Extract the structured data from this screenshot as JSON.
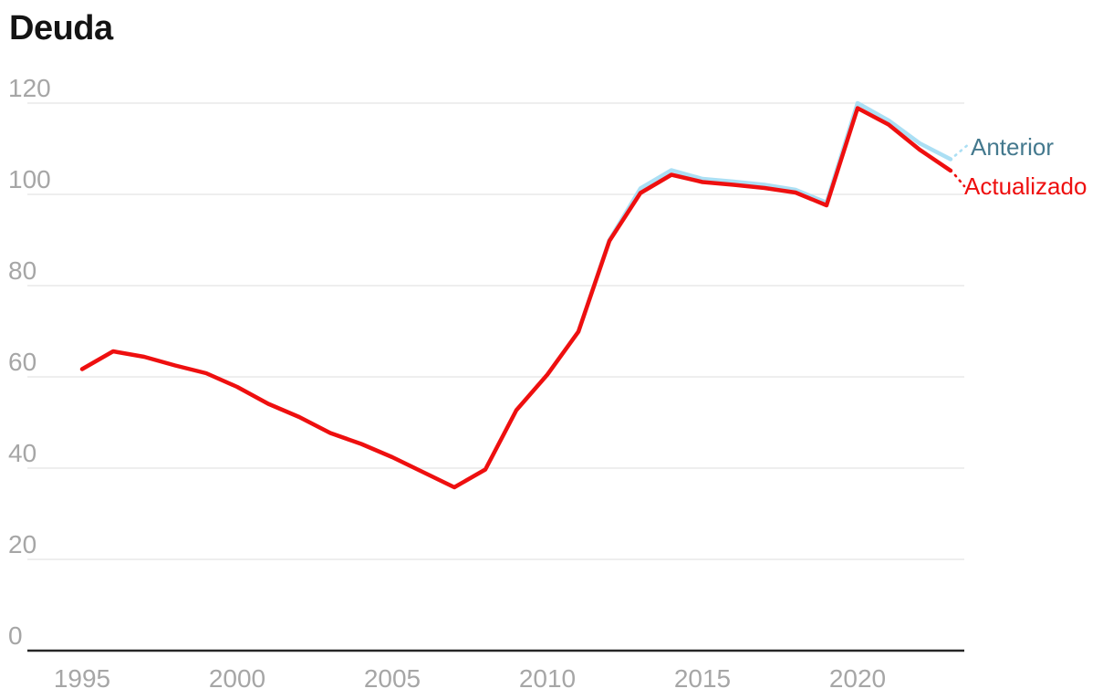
{
  "title": "Deuda",
  "chart_data": {
    "type": "line",
    "title": "Deuda",
    "x": [
      1995,
      1996,
      1997,
      1998,
      1999,
      2000,
      2001,
      2002,
      2003,
      2004,
      2005,
      2006,
      2007,
      2008,
      2009,
      2010,
      2011,
      2012,
      2013,
      2014,
      2015,
      2016,
      2017,
      2018,
      2019,
      2020,
      2021,
      2022,
      2023
    ],
    "xticks": [
      1995,
      2000,
      2005,
      2010,
      2015,
      2020
    ],
    "yticks": [
      0,
      20,
      40,
      60,
      80,
      100,
      120
    ],
    "ylim": [
      0,
      120
    ],
    "grid": true,
    "legend_position": "end-of-line-labels",
    "series": [
      {
        "name": "Anterior",
        "color": "#abdff4",
        "label_color": "#44798e",
        "values": [
          null,
          null,
          null,
          null,
          null,
          null,
          null,
          null,
          null,
          null,
          null,
          null,
          null,
          null,
          null,
          null,
          69.9,
          90.0,
          101.3,
          105.3,
          103.4,
          102.8,
          102.1,
          101.0,
          98.2,
          120.0,
          116.2,
          111.2,
          107.7
        ]
      },
      {
        "name": "Actualizado",
        "color": "#ee0f0f",
        "label_color": "#ee0f0f",
        "values": [
          61.7,
          65.6,
          64.4,
          62.5,
          60.8,
          57.8,
          54.1,
          51.2,
          47.7,
          45.3,
          42.4,
          39.1,
          35.8,
          39.7,
          52.7,
          60.5,
          69.9,
          89.8,
          100.3,
          104.3,
          102.7,
          102.1,
          101.4,
          100.4,
          97.6,
          118.9,
          115.3,
          109.8,
          105.2
        ]
      }
    ]
  },
  "colors": {
    "background": "#ffffff",
    "title": "#141414",
    "grid": "#e4e4e4",
    "axis": "#262626",
    "tick_text": "#a6a6a6"
  }
}
